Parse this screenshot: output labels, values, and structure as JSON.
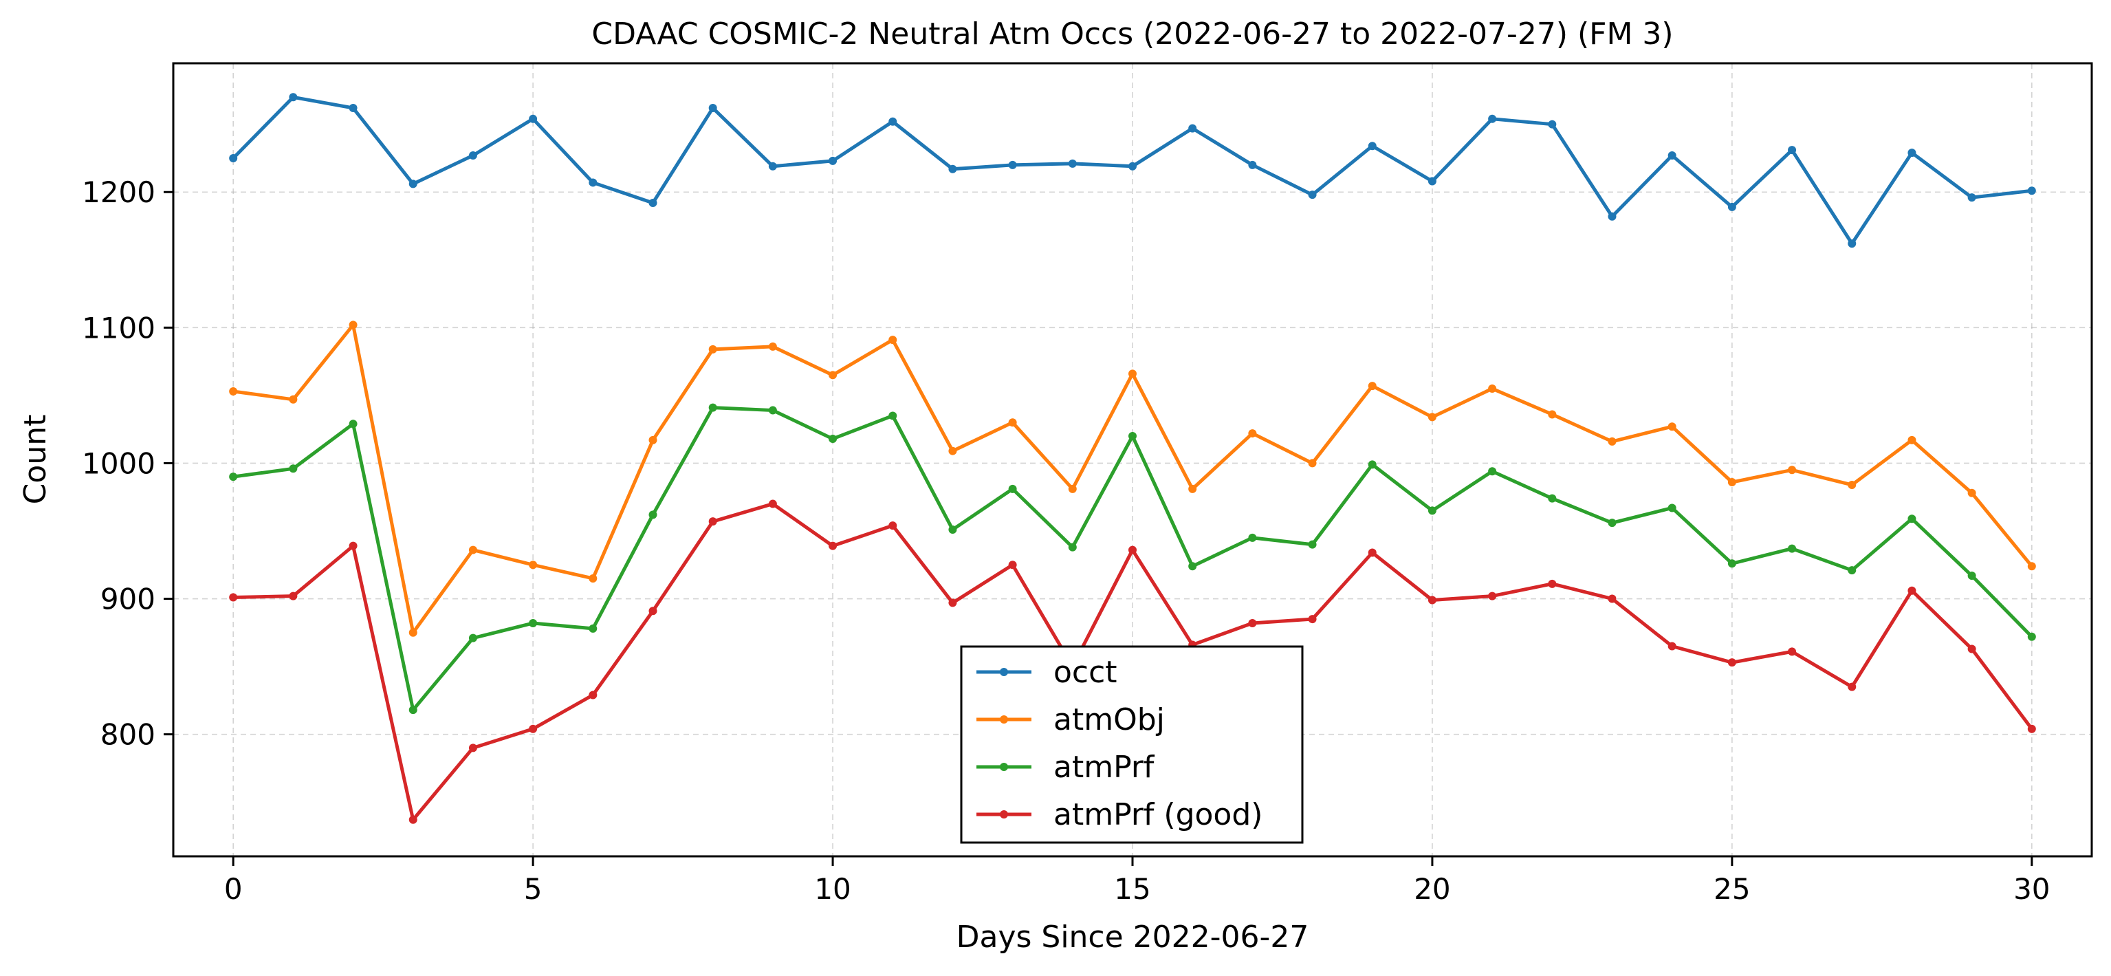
{
  "chart_data": {
    "type": "line",
    "title": "CDAAC COSMIC-2 Neutral Atm Occs (2022-06-27 to 2022-07-27) (FM 3)",
    "xlabel": "Days Since 2022-06-27",
    "ylabel": "Count",
    "xlim": [
      -1,
      31
    ],
    "ylim": [
      710,
      1295
    ],
    "xticks": [
      0,
      5,
      10,
      15,
      20,
      25,
      30
    ],
    "yticks": [
      800,
      900,
      1000,
      1100,
      1200
    ],
    "grid": true,
    "legend_position": "bottom-center",
    "x": [
      0,
      1,
      2,
      3,
      4,
      5,
      6,
      7,
      8,
      9,
      10,
      11,
      12,
      13,
      14,
      15,
      16,
      17,
      18,
      19,
      20,
      21,
      22,
      23,
      24,
      25,
      26,
      27,
      28,
      29,
      30
    ],
    "series": [
      {
        "name": "occt",
        "color": "#1f77b4",
        "values": [
          1225,
          1270,
          1262,
          1206,
          1227,
          1254,
          1207,
          1192,
          1262,
          1219,
          1223,
          1252,
          1217,
          1220,
          1221,
          1219,
          1247,
          1220,
          1198,
          1234,
          1208,
          1254,
          1250,
          1182,
          1227,
          1189,
          1231,
          1162,
          1229,
          1196,
          1201
        ]
      },
      {
        "name": "atmObj",
        "color": "#ff7f0e",
        "values": [
          1053,
          1047,
          1102,
          875,
          936,
          925,
          915,
          1017,
          1084,
          1086,
          1065,
          1091,
          1009,
          1030,
          981,
          1066,
          981,
          1022,
          1000,
          1057,
          1034,
          1055,
          1036,
          1016,
          1027,
          986,
          995,
          984,
          1017,
          978,
          924
        ]
      },
      {
        "name": "atmPrf",
        "color": "#2ca02c",
        "values": [
          990,
          996,
          1029,
          818,
          871,
          882,
          878,
          962,
          1041,
          1039,
          1018,
          1035,
          951,
          981,
          938,
          1020,
          924,
          945,
          940,
          999,
          965,
          994,
          974,
          956,
          967,
          926,
          937,
          921,
          959,
          917,
          872
        ]
      },
      {
        "name": "atmPrf (good)",
        "color": "#d62728",
        "values": [
          901,
          902,
          939,
          737,
          790,
          804,
          829,
          891,
          957,
          970,
          939,
          954,
          897,
          925,
          850,
          936,
          866,
          882,
          885,
          934,
          899,
          902,
          911,
          900,
          865,
          853,
          861,
          835,
          906,
          863,
          804
        ]
      }
    ]
  }
}
